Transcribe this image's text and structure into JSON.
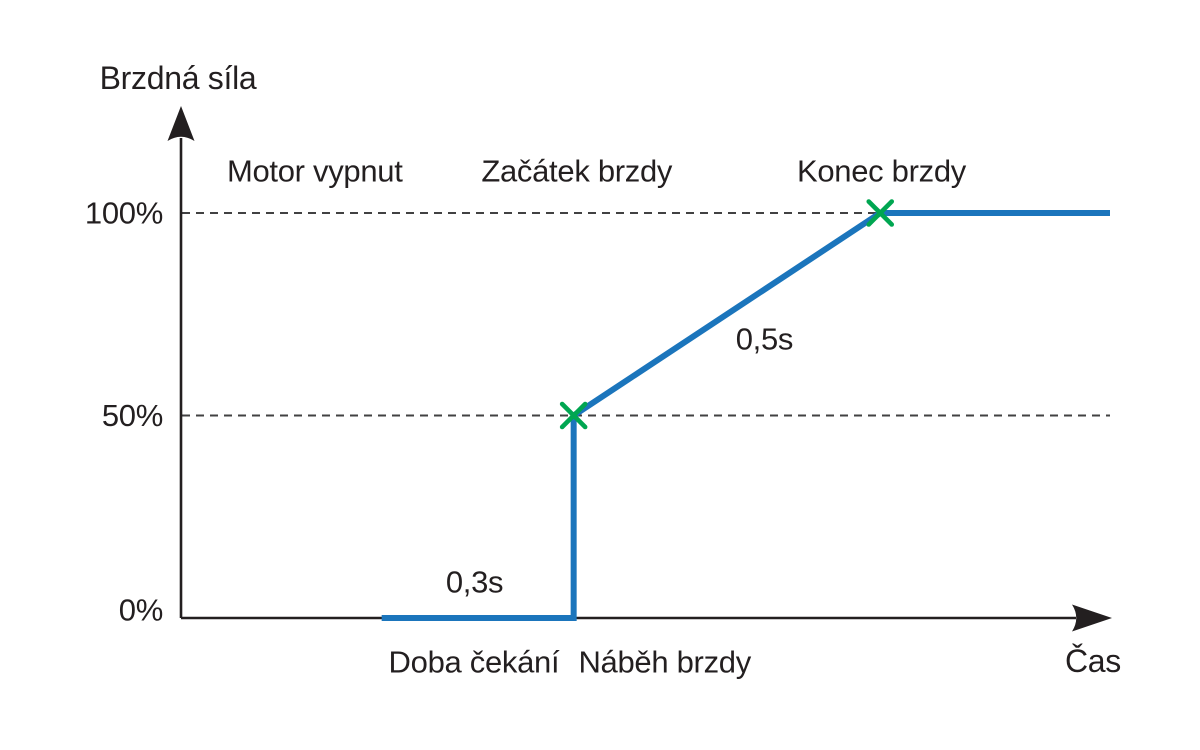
{
  "page": {
    "background": "#ffffff"
  },
  "chart_data": {
    "type": "line",
    "title": "",
    "ylabel": "Brzdná síla",
    "xlabel": "Čas",
    "xlim": [
      0,
      1.5
    ],
    "ylim": [
      0,
      100
    ],
    "grid": "dashed-horizontal",
    "legend": "none",
    "axis_color": "#231f20",
    "text_color": "#231f20",
    "grid_color": "#414142",
    "yticks": [
      {
        "value": 0,
        "label": "0%"
      },
      {
        "value": 50,
        "label": "50%"
      },
      {
        "value": 100,
        "label": "100%"
      }
    ],
    "gridline_values": [
      50,
      100
    ],
    "series": [
      {
        "name": "brzdna-sila",
        "color": "#1b75bc",
        "points": [
          {
            "t": 0.324,
            "v": 0
          },
          {
            "t": 0.634,
            "v": 0
          },
          {
            "t": 0.634,
            "v": 50
          },
          {
            "t": 1.129,
            "v": 100
          },
          {
            "t": 1.5,
            "v": 100
          }
        ]
      }
    ],
    "markers": {
      "shape": "x",
      "color": "#00a651",
      "points": [
        {
          "t": 0.634,
          "v": 50
        },
        {
          "t": 1.129,
          "v": 100
        }
      ]
    },
    "phase_labels_top": [
      {
        "text": "Motor vypnut",
        "t": 0.216
      },
      {
        "text": "Začátek brzdy",
        "t": 0.639
      },
      {
        "text": "Konec brzdy",
        "t": 1.131
      }
    ],
    "duration_labels": [
      {
        "text": "0,3s",
        "t": 0.474,
        "v": 8.9
      },
      {
        "text": "0,5s",
        "t": 0.942,
        "v": 68.9
      }
    ],
    "phase_labels_bottom": [
      {
        "text": "Doba čekání",
        "t": 0.473
      },
      {
        "text": "Náběh brzdy",
        "t": 0.781
      }
    ]
  }
}
